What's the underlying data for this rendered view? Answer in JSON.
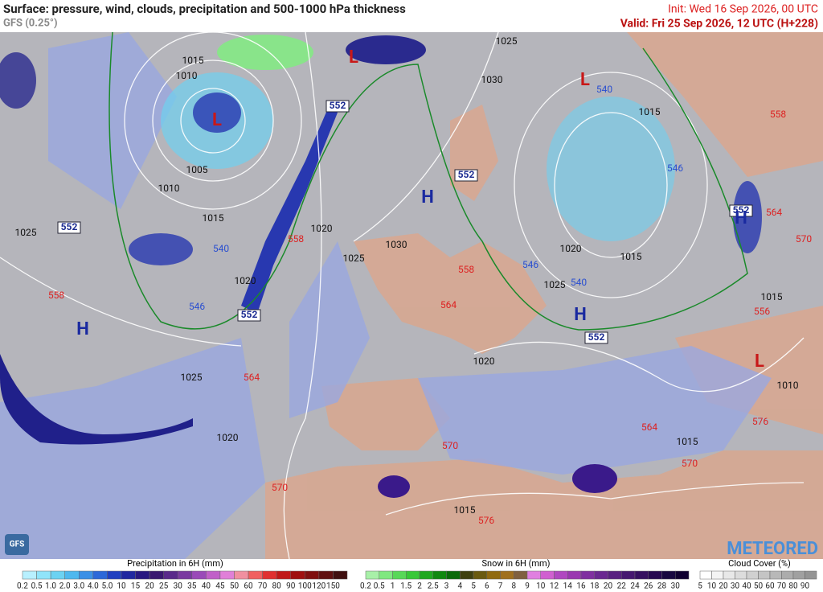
{
  "header": {
    "title": "Surface: pressure, wind, clouds, precipitation and 500-1000 hPa thickness",
    "subtitle": "GFS (0.25°)",
    "init": "Init: Wed 16 Sep 2026, 00 UTC",
    "valid": "Valid: Fri 25 Sep 2026, 12 UTC (H+228)"
  },
  "map": {
    "isobar_labels": [
      "1015",
      "1010",
      "1005",
      "1010",
      "1015",
      "1025",
      "1020",
      "1020",
      "1025",
      "1030",
      "1025",
      "1020",
      "1025",
      "1030",
      "1015",
      "1020",
      "1015",
      "1025",
      "1020",
      "1015",
      "1010",
      "1015",
      "1015"
    ],
    "thickness_red": [
      "558",
      "564",
      "570",
      "558",
      "558",
      "564",
      "556",
      "564",
      "570",
      "570",
      "576",
      "564",
      "570",
      "576",
      "558"
    ],
    "thickness_blue": [
      "540",
      "546",
      "540",
      "546",
      "546",
      "540"
    ],
    "thickness_boxed": [
      "552",
      "552",
      "552",
      "552",
      "552",
      "552"
    ],
    "highs": [
      "H",
      "H",
      "H",
      "H"
    ],
    "lows": [
      "L",
      "L",
      "L",
      "L"
    ],
    "logo": "METEORED",
    "model_badge": "GFS"
  },
  "legend": {
    "precipitation": {
      "title": "Precipitation in 6H (mm)",
      "labels": [
        "0.2",
        "0.5",
        "1.0",
        "2.0",
        "3.0",
        "4.0",
        "5.0",
        "10",
        "15",
        "20",
        "25",
        "30",
        "35",
        "40",
        "45",
        "50",
        "60",
        "70",
        "80",
        "90",
        "100",
        "120",
        "150"
      ]
    },
    "snow": {
      "title": "Snow in 6H (mm)",
      "labels": [
        "0.2",
        "0.5",
        "1",
        "1.5",
        "2",
        "2.5",
        "3",
        "4",
        "5",
        "6",
        "7",
        "8",
        "9",
        "10",
        "12",
        "14",
        "16",
        "18",
        "20",
        "22",
        "24",
        "26",
        "28",
        "30"
      ]
    },
    "cloud": {
      "title": "Cloud Cover (%)",
      "labels": [
        "5",
        "10",
        "20",
        "30",
        "40",
        "50",
        "60",
        "70",
        "80",
        "90"
      ]
    }
  }
}
